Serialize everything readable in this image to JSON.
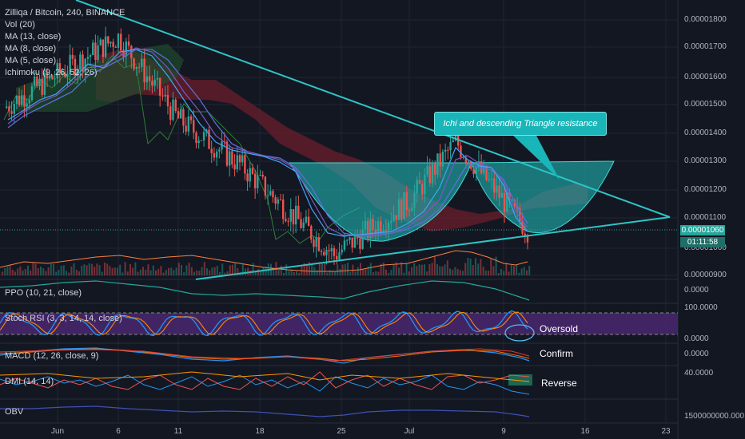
{
  "symbol_line": "Zilliqa / Bitcoin, 240, BINANCE",
  "indicators": [
    "Vol (20)",
    "MA (13, close)",
    "MA (8, close)",
    "MA (5, close)",
    "Ichimoku (9, 26, 52, 26)"
  ],
  "panes": {
    "ppo": "PPO (10, 21, close)",
    "stoch": "Stoch RSI (3, 3, 14, 14, close)",
    "macd": "MACD (12, 26, close, 9)",
    "dmi": "DMI (14, 14)",
    "obv": "OBV"
  },
  "price_axis": [
    "0.00001800",
    "0.00001700",
    "0.00001600",
    "0.00001500",
    "0.00001400",
    "0.00001300",
    "0.00001200",
    "0.00001100",
    "0.00001000",
    "0.00000900"
  ],
  "current_price": "0.00001060",
  "countdown": "01:11:58",
  "ppo_axis": "0.0000",
  "stoch_axis": [
    "100.0000",
    "0.0000"
  ],
  "macd_axis": "0.0000",
  "dmi_axis": "40.0000",
  "obv_axis": "1500000000.000",
  "callout": "Ichi and descending Triangle resistance",
  "notes": {
    "oversold": "Oversold",
    "confirm": "Confirm",
    "reverse": "Reverse"
  },
  "x_labels": [
    "Jun",
    "6",
    "11",
    "18",
    "25",
    "Jul",
    "9",
    "16",
    "23"
  ],
  "colors": {
    "background": "#131722",
    "up_candle": "#26a69a",
    "down_candle": "#ef5350",
    "trendline": "#2ec4c6",
    "cup_fill": "#1fb5b4",
    "stoch_band": "#4a2770",
    "price_tag": "#26a69a"
  },
  "chart_data": {
    "type": "candlestick",
    "x_ticks": [
      "Jun",
      "6",
      "11",
      "18",
      "25",
      "Jul",
      "9",
      "16",
      "23"
    ],
    "ylim": [
      9e-06,
      1.84e-05
    ],
    "close_approx": [
      {
        "date": "Jun",
        "close": 1.49e-05
      },
      {
        "date": "6",
        "close": 1.74e-05
      },
      {
        "date": "11",
        "close": 1.45e-05
      },
      {
        "date": "18",
        "close": 1.29e-05
      },
      {
        "date": "25",
        "close": 9.7e-06
      },
      {
        "date": "Jul",
        "close": 1.16e-05
      },
      {
        "date": "Jul 5",
        "close": 1.37e-05
      },
      {
        "date": "9",
        "close": 1.06e-05
      }
    ],
    "last_price": 1.06e-05
  }
}
